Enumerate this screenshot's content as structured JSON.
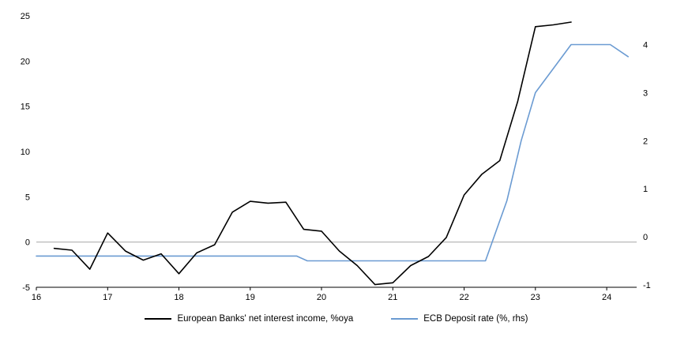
{
  "chart_data": {
    "type": "line",
    "title": "",
    "x_range": [
      16,
      24.42
    ],
    "x_ticks": [
      16,
      17,
      18,
      19,
      20,
      21,
      22,
      23,
      24
    ],
    "left_axis": {
      "min": -5,
      "max": 25,
      "ticks": [
        -5,
        0,
        5,
        10,
        15,
        20,
        25
      ]
    },
    "right_axis": {
      "min": -1.05,
      "max": 4.6,
      "ticks": [
        -1,
        0,
        1,
        2,
        3,
        4
      ]
    },
    "grid": "zero-line-only",
    "zero_line_color": "#a6a6a6",
    "legend_position": "bottom",
    "series": [
      {
        "name": "European Banks' net interest income, %oya",
        "axis": "left",
        "color": "#000000",
        "x": [
          16.25,
          16.5,
          16.75,
          17.0,
          17.25,
          17.5,
          17.75,
          18.0,
          18.25,
          18.5,
          18.75,
          19.0,
          19.25,
          19.5,
          19.75,
          20.0,
          20.25,
          20.5,
          20.75,
          21.0,
          21.25,
          21.5,
          21.75,
          22.0,
          22.25,
          22.5,
          22.75,
          23.0,
          23.25,
          23.5
        ],
        "values": [
          -0.7,
          -0.9,
          -3.0,
          1.0,
          -1.0,
          -2.0,
          -1.3,
          -3.5,
          -1.2,
          -0.3,
          3.3,
          4.5,
          4.3,
          4.4,
          1.4,
          1.2,
          -1.0,
          -2.6,
          -4.7,
          -4.5,
          -2.6,
          -1.6,
          0.5,
          5.2,
          7.5,
          9.0,
          15.5,
          23.8,
          24.0,
          24.3
        ]
      },
      {
        "name": "ECB Deposit rate (%, rhs)",
        "axis": "right",
        "color": "#6b9bd2",
        "x": [
          16.0,
          19.65,
          19.8,
          22.3,
          22.6,
          22.8,
          23.0,
          23.25,
          23.5,
          24.05,
          24.3
        ],
        "values": [
          -0.4,
          -0.4,
          -0.5,
          -0.5,
          0.75,
          2.0,
          3.0,
          3.5,
          4.0,
          4.0,
          3.75
        ]
      }
    ]
  },
  "legend": {
    "items": [
      {
        "label": "European Banks' net interest income, %oya",
        "color": "#000000"
      },
      {
        "label": "ECB Deposit rate (%, rhs)",
        "color": "#6b9bd2"
      }
    ]
  }
}
